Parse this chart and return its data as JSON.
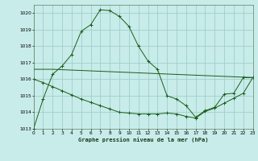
{
  "title": "Graphe pression niveau de la mer (hPa)",
  "background_color": "#c8ece9",
  "grid_color": "#9ecfcc",
  "line_color": "#1a5c1a",
  "ylim": [
    1013,
    1020.5
  ],
  "xlim": [
    0,
    23
  ],
  "yticks": [
    1013,
    1014,
    1015,
    1016,
    1017,
    1018,
    1019,
    1020
  ],
  "xticks": [
    0,
    1,
    2,
    3,
    4,
    5,
    6,
    7,
    8,
    9,
    10,
    11,
    12,
    13,
    14,
    15,
    16,
    17,
    18,
    19,
    20,
    21,
    22,
    23
  ],
  "series": [
    {
      "x": [
        0,
        1,
        2,
        3,
        4,
        5,
        6,
        7,
        8,
        9,
        10,
        11,
        12,
        13,
        14,
        15,
        16,
        17,
        18,
        19,
        20,
        21,
        22,
        23
      ],
      "y": [
        1013.0,
        1014.8,
        1016.3,
        1016.8,
        1017.5,
        1018.9,
        1019.3,
        1020.2,
        1020.15,
        1019.8,
        1019.2,
        1018.0,
        1017.1,
        1016.6,
        1015.0,
        1014.8,
        1014.4,
        1013.7,
        1014.1,
        1014.3,
        1015.1,
        1015.15,
        1016.1,
        1016.1
      ]
    },
    {
      "x": [
        0,
        2,
        23
      ],
      "y": [
        1016.6,
        1016.6,
        1016.1
      ]
    },
    {
      "x": [
        0,
        1,
        2,
        3,
        4,
        5,
        6,
        7,
        8,
        9,
        10,
        11,
        12,
        13,
        14,
        15,
        16,
        17,
        18,
        19,
        20,
        21,
        22,
        23
      ],
      "y": [
        1016.0,
        1015.8,
        1015.55,
        1015.3,
        1015.05,
        1014.8,
        1014.6,
        1014.4,
        1014.2,
        1014.0,
        1013.95,
        1013.9,
        1013.9,
        1013.9,
        1013.95,
        1013.9,
        1013.75,
        1013.65,
        1014.05,
        1014.25,
        1014.55,
        1014.85,
        1015.15,
        1016.1
      ]
    }
  ],
  "series_markers": [
    true,
    false,
    true
  ]
}
